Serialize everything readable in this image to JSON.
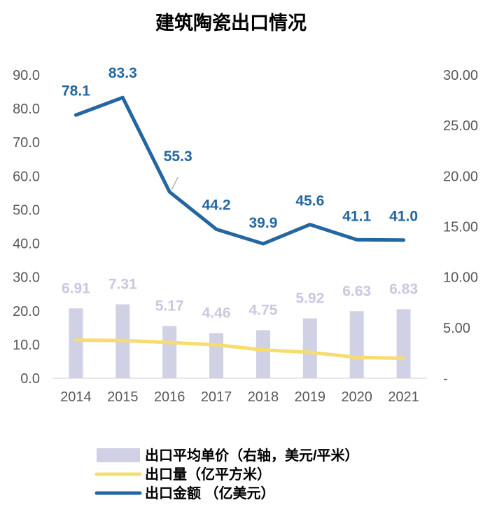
{
  "chart_data": {
    "type": "bar",
    "title": "建筑陶瓷出口情况",
    "categories": [
      "2014",
      "2015",
      "2016",
      "2017",
      "2018",
      "2019",
      "2020",
      "2021"
    ],
    "left_axis": {
      "ylim": [
        0,
        90
      ],
      "ticks": [
        "0.0",
        "10.0",
        "20.0",
        "30.0",
        "40.0",
        "50.0",
        "60.0",
        "70.0",
        "80.0",
        "90.0"
      ]
    },
    "right_axis": {
      "ylim": [
        0,
        30
      ],
      "ticks": [
        "-",
        "5.00",
        "10.00",
        "15.00",
        "20.00",
        "25.00",
        "30.00"
      ]
    },
    "series": [
      {
        "name": "出口平均单价（右轴，美元/平米）",
        "type": "bar",
        "axis": "right",
        "color": "#d0d1e4",
        "label_color": "#c8c9df",
        "values": [
          6.91,
          7.31,
          5.17,
          4.46,
          4.75,
          5.92,
          6.63,
          6.83
        ],
        "labels": [
          "6.91",
          "7.31",
          "5.17",
          "4.46",
          "4.75",
          "5.92",
          "6.63",
          "6.83"
        ]
      },
      {
        "name": "出口量（亿平方米）",
        "type": "line",
        "axis": "left",
        "color": "#f7dc6f",
        "values": [
          11.3,
          11.2,
          10.6,
          9.9,
          8.4,
          7.7,
          6.2,
          5.9
        ]
      },
      {
        "name": "出口金额（亿美元）",
        "type": "line",
        "axis": "left",
        "color": "#2466a0",
        "values": [
          78.1,
          83.3,
          55.3,
          44.2,
          39.9,
          45.6,
          41.1,
          41.0
        ],
        "labels": [
          "78.1",
          "83.3",
          "55.3",
          "44.2",
          "39.9",
          "45.6",
          "41.1",
          "41.0"
        ]
      }
    ],
    "legend": {
      "position": "bottom",
      "items": [
        {
          "label": "出口平均单价（右轴，美元/平米）",
          "color": "#d0d1e4"
        },
        {
          "label": "出口量（亿平方米）",
          "color": "#f7dc6f"
        },
        {
          "label": "出口金额 （亿美元）",
          "color": "#2466a0"
        }
      ]
    },
    "grid": false
  }
}
